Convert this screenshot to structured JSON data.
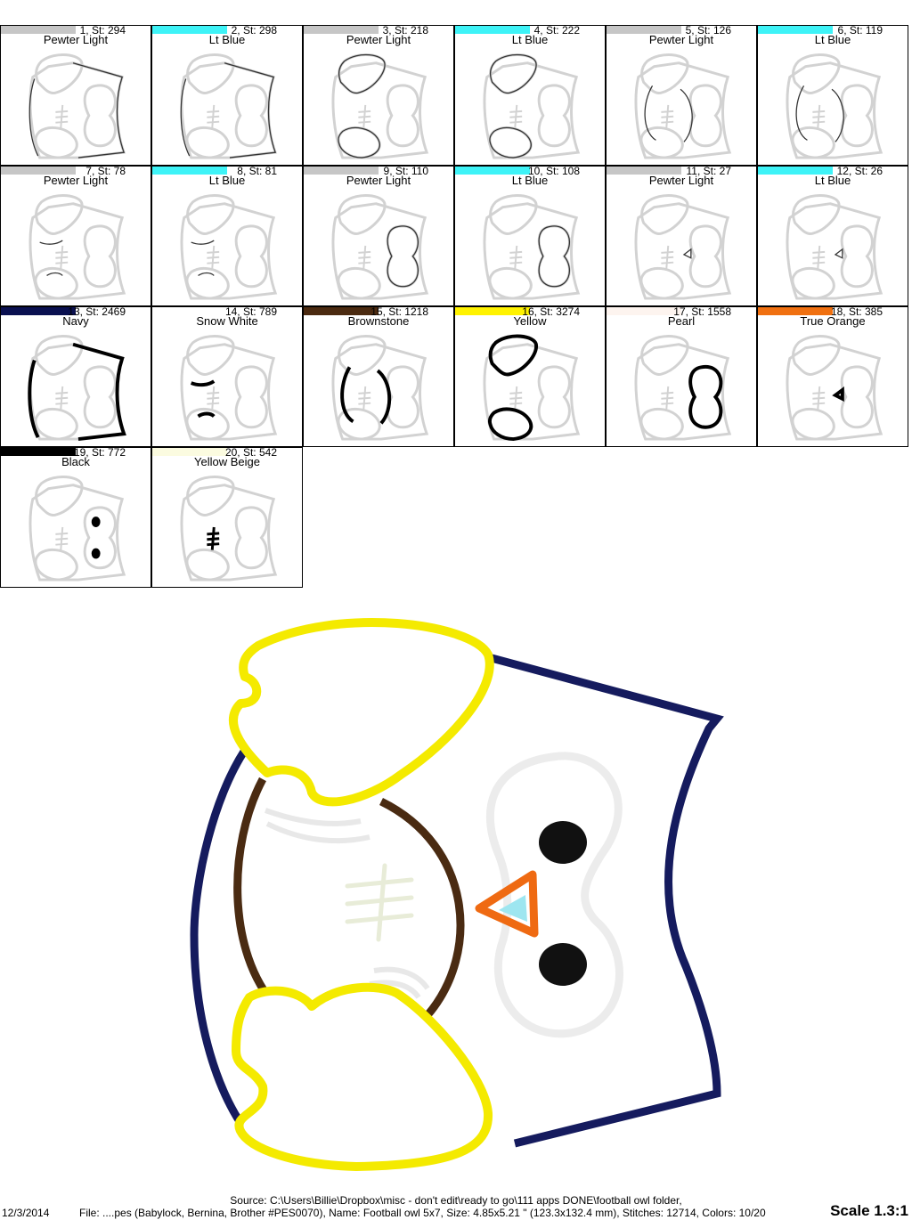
{
  "colors": {
    "outline_gray": "#c8c8c8",
    "navy": "#151b5e",
    "snow_white": "#f7f7f7",
    "brownstone": "#4a2b12",
    "yellow": "#f4ea00",
    "pearl": "#f2f0ee",
    "true_orange": "#ef6a12",
    "black": "#111111",
    "yellow_beige": "#f2f0dc",
    "lt_blue": "#66d8de"
  },
  "stops": [
    {
      "num": "1, St: 294",
      "name": "Pewter Light",
      "swatch": "#c6c6c6",
      "icon": "side-outline-icon"
    },
    {
      "num": "2, St: 298",
      "name": "Lt Blue",
      "swatch": "#3ef3f7",
      "icon": "side-outline-icon"
    },
    {
      "num": "3, St: 218",
      "name": "Pewter Light",
      "swatch": "#c6c6c6",
      "icon": "wings-outline-icon"
    },
    {
      "num": "4, St: 222",
      "name": "Lt Blue",
      "swatch": "#3ef3f7",
      "icon": "wings-outline-icon"
    },
    {
      "num": "5, St: 126",
      "name": "Pewter Light",
      "swatch": "#c6c6c6",
      "icon": "belly-outline-icon"
    },
    {
      "num": "6, St: 119",
      "name": "Lt Blue",
      "swatch": "#3ef3f7",
      "icon": "belly-outline-icon"
    },
    {
      "num": "7, St: 78",
      "name": "Pewter Light",
      "swatch": "#c6c6c6",
      "icon": "feather-outline-icon"
    },
    {
      "num": "8, St: 81",
      "name": "Lt Blue",
      "swatch": "#3ef3f7",
      "icon": "feather-outline-icon"
    },
    {
      "num": "9, St: 110",
      "name": "Pewter Light",
      "swatch": "#c6c6c6",
      "icon": "eyes-outline-icon"
    },
    {
      "num": "10, St: 108",
      "name": "Lt Blue",
      "swatch": "#3ef3f7",
      "icon": "eyes-outline-icon"
    },
    {
      "num": "11, St: 27",
      "name": "Pewter Light",
      "swatch": "#c6c6c6",
      "icon": "beak-outline-icon"
    },
    {
      "num": "12, St: 26",
      "name": "Lt Blue",
      "swatch": "#3ef3f7",
      "icon": "beak-outline-icon"
    },
    {
      "num": "13, St: 2469",
      "name": "Navy",
      "swatch": "#0a1050",
      "icon": "side-satin-icon"
    },
    {
      "num": "14, St: 789",
      "name": "Snow White",
      "swatch": "#ffffff",
      "icon": "feather-satin-icon"
    },
    {
      "num": "15, St: 1218",
      "name": "Brownstone",
      "swatch": "#4b2a10",
      "icon": "belly-satin-icon"
    },
    {
      "num": "16, St: 3274",
      "name": "Yellow",
      "swatch": "#fff200",
      "icon": "wings-satin-icon"
    },
    {
      "num": "17, St: 1558",
      "name": "Pearl",
      "swatch": "#fdf4ef",
      "icon": "eyes-satin-icon"
    },
    {
      "num": "18, St: 385",
      "name": "True Orange",
      "swatch": "#f07010",
      "icon": "beak-satin-icon"
    },
    {
      "num": "19, St: 772",
      "name": "Black",
      "swatch": "#000000",
      "icon": "pupils-icon"
    },
    {
      "num": "20, St: 542",
      "name": "Yellow Beige",
      "swatch": "#fbfbe0",
      "icon": "laces-icon"
    }
  ],
  "footer": {
    "source": "Source: C:\\Users\\Billie\\Dropbox\\misc - don't edit\\ready to go\\111 apps DONE\\football owl folder,",
    "date": "12/3/2014",
    "file": "File: ....pes (Babylock, Bernina, Brother #PES0070), Name: Football owl 5x7, Size: 4.85x5.21 \" (123.3x132.4 mm), Stitches: 12714, Colors: 10/20",
    "scale": "Scale 1.3:1"
  }
}
